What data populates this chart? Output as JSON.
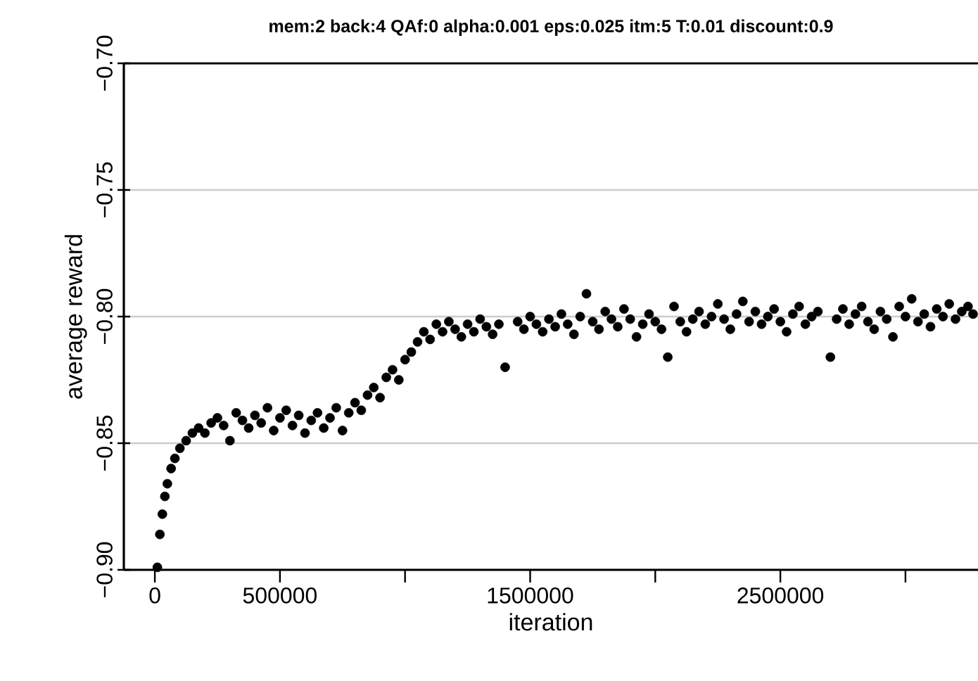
{
  "chart_data": {
    "type": "scatter",
    "title": "mem:2 back:4 QAf:0 alpha:0.001 eps:0.025 itm:5 T:0.01 discount:0.9",
    "xlabel": "iteration",
    "ylabel": "average reward",
    "color": "#000000",
    "marker": "circle",
    "grid": "y",
    "xlim": [
      -124000,
      3290000
    ],
    "ylim": [
      -0.9,
      -0.7
    ],
    "xticks": [
      0,
      500000,
      {
        "value": 1000000,
        "label": null
      },
      1500000,
      {
        "value": 2000000,
        "label": null
      },
      2500000,
      {
        "value": 3000000,
        "label": null
      }
    ],
    "yticks": [
      {
        "value": -0.9,
        "label": "−0.90"
      },
      {
        "value": -0.85,
        "label": "−0.85"
      },
      {
        "value": -0.8,
        "label": "−0.80"
      },
      {
        "value": -0.75,
        "label": "−0.75"
      },
      {
        "value": -0.7,
        "label": "−0.70"
      }
    ],
    "x": [
      10000,
      20000,
      30000,
      40000,
      50000,
      65000,
      80000,
      100000,
      125000,
      150000,
      175000,
      200000,
      225000,
      250000,
      275000,
      300000,
      325000,
      350000,
      375000,
      400000,
      425000,
      450000,
      475000,
      500000,
      525000,
      550000,
      575000,
      600000,
      625000,
      650000,
      675000,
      700000,
      725000,
      750000,
      775000,
      800000,
      825000,
      850000,
      875000,
      900000,
      925000,
      950000,
      975000,
      1000000,
      1025000,
      1050000,
      1075000,
      1100000,
      1125000,
      1150000,
      1175000,
      1200000,
      1225000,
      1250000,
      1275000,
      1300000,
      1325000,
      1350000,
      1375000,
      1400000,
      1450000,
      1475000,
      1500000,
      1525000,
      1550000,
      1575000,
      1600000,
      1625000,
      1650000,
      1675000,
      1700000,
      1725000,
      1750000,
      1775000,
      1800000,
      1825000,
      1850000,
      1875000,
      1900000,
      1925000,
      1950000,
      1975000,
      2000000,
      2025000,
      2050000,
      2075000,
      2100000,
      2125000,
      2150000,
      2175000,
      2200000,
      2225000,
      2250000,
      2275000,
      2300000,
      2325000,
      2350000,
      2375000,
      2400000,
      2425000,
      2450000,
      2475000,
      2500000,
      2525000,
      2550000,
      2575000,
      2600000,
      2625000,
      2650000,
      2700000,
      2725000,
      2750000,
      2775000,
      2800000,
      2825000,
      2850000,
      2875000,
      2900000,
      2925000,
      2950000,
      2975000,
      3000000,
      3025000,
      3050000,
      3075000,
      3100000,
      3125000,
      3150000,
      3175000,
      3200000,
      3225000,
      3250000,
      3270000
    ],
    "values": [
      -0.899,
      -0.886,
      -0.878,
      -0.871,
      -0.866,
      -0.86,
      -0.856,
      -0.852,
      -0.849,
      -0.846,
      -0.844,
      -0.846,
      -0.842,
      -0.84,
      -0.843,
      -0.849,
      -0.838,
      -0.841,
      -0.844,
      -0.839,
      -0.842,
      -0.836,
      -0.845,
      -0.84,
      -0.837,
      -0.843,
      -0.839,
      -0.846,
      -0.841,
      -0.838,
      -0.844,
      -0.84,
      -0.836,
      -0.845,
      -0.838,
      -0.834,
      -0.837,
      -0.831,
      -0.828,
      -0.832,
      -0.824,
      -0.821,
      -0.825,
      -0.817,
      -0.814,
      -0.81,
      -0.806,
      -0.809,
      -0.803,
      -0.806,
      -0.802,
      -0.805,
      -0.808,
      -0.803,
      -0.806,
      -0.801,
      -0.804,
      -0.807,
      -0.803,
      -0.82,
      -0.802,
      -0.805,
      -0.8,
      -0.803,
      -0.806,
      -0.801,
      -0.804,
      -0.799,
      -0.803,
      -0.807,
      -0.8,
      -0.791,
      -0.802,
      -0.805,
      -0.798,
      -0.801,
      -0.804,
      -0.797,
      -0.801,
      -0.808,
      -0.803,
      -0.799,
      -0.802,
      -0.805,
      -0.816,
      -0.796,
      -0.802,
      -0.806,
      -0.801,
      -0.798,
      -0.803,
      -0.8,
      -0.795,
      -0.801,
      -0.805,
      -0.799,
      -0.794,
      -0.802,
      -0.798,
      -0.803,
      -0.8,
      -0.797,
      -0.802,
      -0.806,
      -0.799,
      -0.796,
      -0.803,
      -0.8,
      -0.798,
      -0.816,
      -0.801,
      -0.797,
      -0.803,
      -0.799,
      -0.796,
      -0.802,
      -0.805,
      -0.798,
      -0.801,
      -0.808,
      -0.796,
      -0.8,
      -0.793,
      -0.802,
      -0.799,
      -0.804,
      -0.797,
      -0.8,
      -0.795,
      -0.801,
      -0.798,
      -0.796,
      -0.799
    ]
  }
}
